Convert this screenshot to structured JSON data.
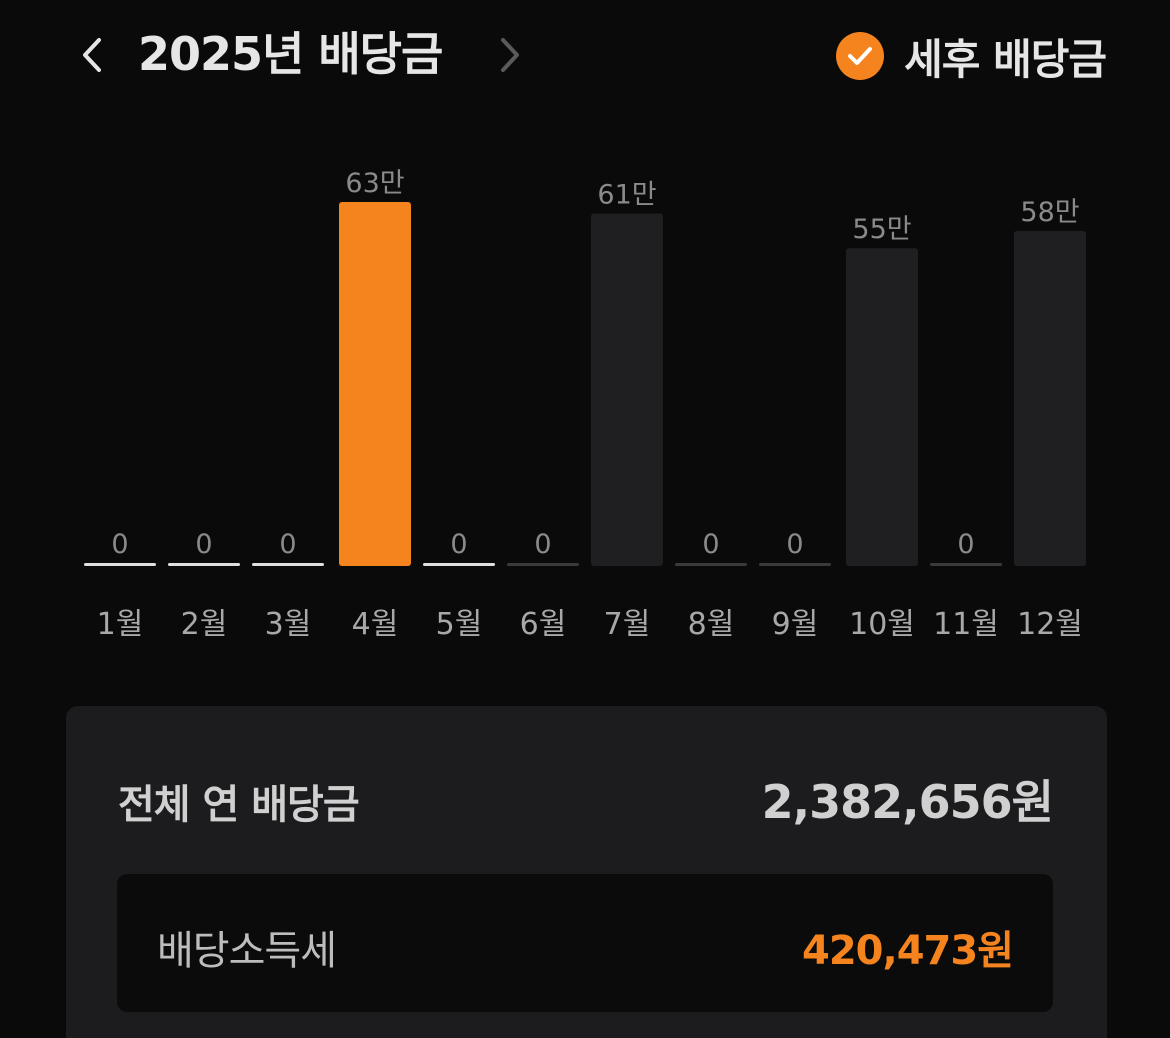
{
  "header": {
    "title": "2025년 배당금",
    "prev_icon": "chevron-left-icon",
    "next_icon": "chevron-right-icon",
    "aftertax_label": "세후 배당금",
    "aftertax_checked": true,
    "aftertax_icon": "check-icon"
  },
  "colors": {
    "accent": "#f5841f",
    "bar_default": "#1f1f21",
    "bar_zero": "#e0e0e0",
    "value_label": "#8a8a8a",
    "month_label": "#a8a8a8",
    "background": "#0a0a0b"
  },
  "chart_data": {
    "type": "bar",
    "categories": [
      "1월",
      "2월",
      "3월",
      "4월",
      "5월",
      "6월",
      "7월",
      "8월",
      "9월",
      "10월",
      "11월",
      "12월"
    ],
    "values": [
      0,
      0,
      0,
      63,
      0,
      0,
      61,
      0,
      0,
      55,
      0,
      58
    ],
    "value_labels": [
      "0",
      "0",
      "0",
      "63만",
      "0",
      "0",
      "61만",
      "0",
      "0",
      "55만",
      "0",
      "58만"
    ],
    "unit": "만",
    "highlighted_index": 3,
    "ylim": [
      0,
      63
    ]
  },
  "summary": {
    "total_label": "전체 연 배당금",
    "total_value": "2,382,656원",
    "tax_label": "배당소득세",
    "tax_value": "420,473원"
  }
}
